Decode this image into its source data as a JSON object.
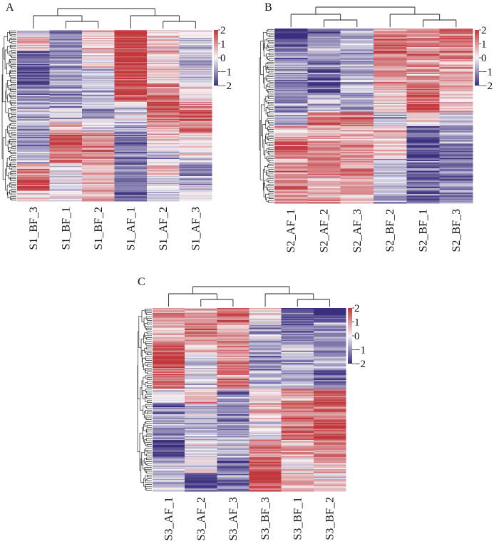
{
  "figure": {
    "background": "#ffffff",
    "colormap": {
      "low": "#3a2f7e",
      "mid": "#f5f3f6",
      "high": "#c1373b",
      "range": [
        -2,
        2
      ]
    }
  },
  "chart_data": [
    {
      "panel": "A",
      "type": "heatmap",
      "title": "",
      "columns": [
        "S1_BF_3",
        "S1_BF_1",
        "S1_BF_2",
        "S1_AF_1",
        "S1_AF_2",
        "S1_AF_3"
      ],
      "column_dendrogram": "((S1_BF_3,(S1_BF_1,S1_BF_2)),(S1_AF_1,(S1_AF_2,S1_AF_3)))",
      "row_dendrogram": true,
      "legend": {
        "ticks": [
          "2",
          "1",
          "0",
          "−1",
          "−2"
        ],
        "values": [
          2,
          1,
          0,
          -1,
          -2
        ],
        "placement": "top-right"
      },
      "row_blocks": [
        {
          "from": 0.0,
          "to": 0.05,
          "values": [
            -0.2,
            -1.3,
            0.4,
            2.1,
            0.5,
            0.2
          ]
        },
        {
          "from": 0.05,
          "to": 0.12,
          "values": [
            0.6,
            -1.0,
            0.6,
            1.8,
            0.2,
            -0.5
          ]
        },
        {
          "from": 0.12,
          "to": 0.22,
          "values": [
            -1.5,
            -1.0,
            0.2,
            2.2,
            0.3,
            -0.5
          ]
        },
        {
          "from": 0.22,
          "to": 0.32,
          "values": [
            -1.7,
            -0.6,
            -0.4,
            2.0,
            0.6,
            -0.3
          ]
        },
        {
          "from": 0.32,
          "to": 0.42,
          "values": [
            -1.2,
            -0.9,
            -0.6,
            1.7,
            1.2,
            0.2
          ]
        },
        {
          "from": 0.42,
          "to": 0.47,
          "values": [
            -0.8,
            -0.7,
            -0.5,
            -0.3,
            2.0,
            0.8
          ]
        },
        {
          "from": 0.47,
          "to": 0.53,
          "values": [
            -0.6,
            -0.3,
            -1.0,
            -0.2,
            1.2,
            1.6
          ]
        },
        {
          "from": 0.53,
          "to": 0.6,
          "values": [
            -0.7,
            0.3,
            -0.2,
            -1.0,
            0.6,
            1.3
          ]
        },
        {
          "from": 0.6,
          "to": 0.68,
          "values": [
            -1.0,
            1.8,
            0.9,
            -1.4,
            0.4,
            0.2
          ]
        },
        {
          "from": 0.68,
          "to": 0.78,
          "values": [
            -0.7,
            1.5,
            1.2,
            -1.0,
            -0.4,
            0.0
          ]
        },
        {
          "from": 0.78,
          "to": 0.86,
          "values": [
            1.0,
            -0.2,
            0.6,
            -0.8,
            0.2,
            -0.9
          ]
        },
        {
          "from": 0.86,
          "to": 0.94,
          "values": [
            1.8,
            -0.4,
            0.8,
            -1.2,
            -0.2,
            -0.6
          ]
        },
        {
          "from": 0.94,
          "to": 1.0,
          "values": [
            0.5,
            0.0,
            1.0,
            -1.5,
            -0.5,
            0.2
          ]
        }
      ]
    },
    {
      "panel": "B",
      "type": "heatmap",
      "title": "",
      "columns": [
        "S2_AF_1",
        "S2_AF_2",
        "S2_AF_3",
        "S2_BF_2",
        "S2_BF_1",
        "S2_BF_3"
      ],
      "column_dendrogram": "((S2_AF_1,(S2_AF_2,S2_AF_3)),(S2_BF_2,(S2_BF_1,S2_BF_3)))",
      "row_dendrogram": true,
      "legend": {
        "ticks": [
          "2",
          "1",
          "0",
          "−1",
          "−2"
        ],
        "values": [
          2,
          1,
          0,
          -1,
          -2
        ],
        "placement": "top-right"
      },
      "row_blocks": [
        {
          "from": 0.0,
          "to": 0.08,
          "values": [
            -1.9,
            -1.4,
            -1.0,
            1.2,
            1.0,
            1.3
          ]
        },
        {
          "from": 0.08,
          "to": 0.18,
          "values": [
            -1.3,
            -0.8,
            -0.7,
            1.6,
            1.2,
            1.0
          ]
        },
        {
          "from": 0.18,
          "to": 0.28,
          "values": [
            -0.6,
            -1.4,
            -0.8,
            1.2,
            0.8,
            0.7
          ]
        },
        {
          "from": 0.28,
          "to": 0.38,
          "values": [
            -1.2,
            -1.6,
            -0.6,
            0.7,
            1.4,
            0.6
          ]
        },
        {
          "from": 0.38,
          "to": 0.48,
          "values": [
            -1.0,
            -0.4,
            -0.9,
            0.4,
            1.6,
            0.5
          ]
        },
        {
          "from": 0.48,
          "to": 0.56,
          "values": [
            -0.8,
            1.2,
            1.4,
            -0.6,
            0.2,
            -0.2
          ]
        },
        {
          "from": 0.56,
          "to": 0.64,
          "values": [
            0.8,
            0.9,
            0.6,
            0.6,
            -1.5,
            -0.8
          ]
        },
        {
          "from": 0.64,
          "to": 0.74,
          "values": [
            1.5,
            1.1,
            0.8,
            0.2,
            -1.9,
            -1.0
          ]
        },
        {
          "from": 0.74,
          "to": 0.84,
          "values": [
            1.1,
            1.3,
            0.9,
            -0.4,
            -1.5,
            -1.2
          ]
        },
        {
          "from": 0.84,
          "to": 0.92,
          "values": [
            1.3,
            0.8,
            1.0,
            -0.6,
            -1.6,
            -1.1
          ]
        },
        {
          "from": 0.92,
          "to": 1.0,
          "values": [
            1.2,
            1.0,
            0.9,
            -0.8,
            -1.2,
            -0.9
          ]
        }
      ]
    },
    {
      "panel": "C",
      "type": "heatmap",
      "title": "",
      "columns": [
        "S3_AF_1",
        "S3_AF_2",
        "S3_AF_3",
        "S3_BF_3",
        "S3_BF_1",
        "S3_BF_2"
      ],
      "column_dendrogram": "((S3_AF_1,(S3_AF_2,S3_AF_3)),(S3_BF_3,(S3_BF_1,S3_BF_2)))",
      "row_dendrogram": true,
      "legend": {
        "ticks": [
          "2",
          "1",
          "0",
          "−1",
          "−2"
        ],
        "values": [
          2,
          1,
          0,
          -1,
          -2
        ],
        "placement": "top-right"
      },
      "row_blocks": [
        {
          "from": 0.0,
          "to": 0.08,
          "values": [
            1.1,
            0.8,
            1.5,
            0.3,
            -1.4,
            -1.9
          ]
        },
        {
          "from": 0.08,
          "to": 0.18,
          "values": [
            0.6,
            1.2,
            0.8,
            -0.6,
            -1.2,
            -1.0
          ]
        },
        {
          "from": 0.18,
          "to": 0.26,
          "values": [
            1.6,
            0.3,
            1.0,
            -0.8,
            -0.6,
            -1.2
          ]
        },
        {
          "from": 0.26,
          "to": 0.34,
          "values": [
            1.8,
            -0.4,
            0.9,
            -1.0,
            -0.9,
            -0.8
          ]
        },
        {
          "from": 0.34,
          "to": 0.44,
          "values": [
            1.6,
            -0.3,
            1.2,
            -0.5,
            -0.9,
            -1.4
          ]
        },
        {
          "from": 0.44,
          "to": 0.52,
          "values": [
            -0.2,
            0.6,
            -1.2,
            0.4,
            1.0,
            1.5
          ]
        },
        {
          "from": 0.52,
          "to": 0.62,
          "values": [
            -0.9,
            -0.6,
            -1.0,
            0.6,
            1.6,
            1.4
          ]
        },
        {
          "from": 0.62,
          "to": 0.72,
          "values": [
            -1.0,
            -0.8,
            -0.7,
            -0.2,
            1.4,
            1.8
          ]
        },
        {
          "from": 0.72,
          "to": 0.82,
          "values": [
            -1.6,
            -0.4,
            -0.7,
            1.3,
            0.8,
            1.1
          ]
        },
        {
          "from": 0.82,
          "to": 0.9,
          "values": [
            -0.7,
            0.2,
            -1.2,
            1.5,
            0.3,
            0.6
          ]
        },
        {
          "from": 0.9,
          "to": 1.0,
          "values": [
            -0.5,
            -1.8,
            -1.2,
            2.0,
            0.6,
            0.3
          ]
        }
      ]
    }
  ]
}
